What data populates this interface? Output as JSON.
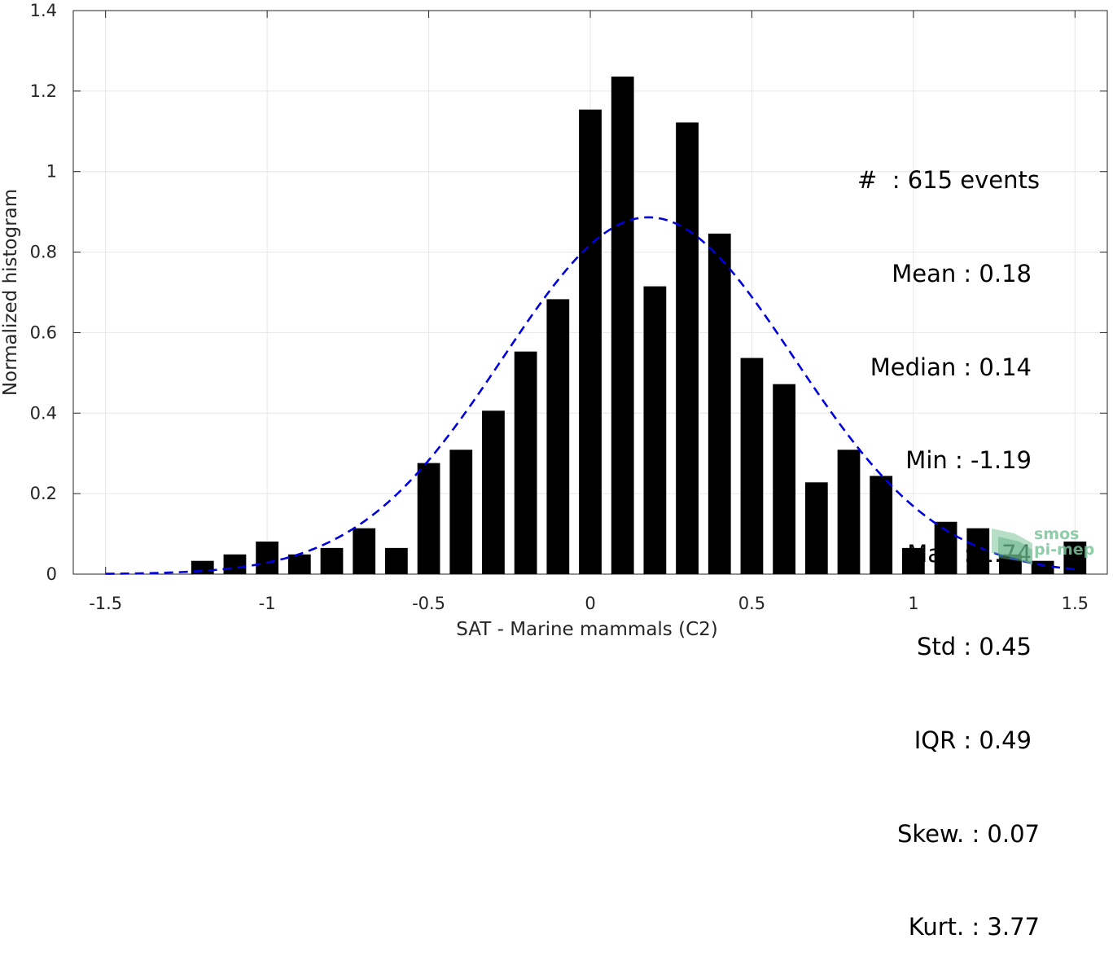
{
  "chart_data": {
    "type": "bar",
    "xlabel": "SAT - Marine mammals (C2)",
    "ylabel": "Normalized histogram",
    "xlim": [
      -1.6,
      1.6
    ],
    "ylim": [
      0,
      1.4
    ],
    "xticks": [
      -1.5,
      -1,
      -0.5,
      0,
      0.5,
      1,
      1.5
    ],
    "xtick_labels": [
      "-1.5",
      "-1",
      "-0.5",
      "0",
      "0.5",
      "1",
      "1.5"
    ],
    "yticks": [
      0,
      0.2,
      0.4,
      0.6,
      0.8,
      1,
      1.2,
      1.4
    ],
    "ytick_labels": [
      "0",
      "0.2",
      "0.4",
      "0.6",
      "0.8",
      "1",
      "1.2",
      "1.4"
    ],
    "grid": true,
    "bar_width": 0.07,
    "bar_color": "#000000",
    "bars": {
      "x": [
        -1.2,
        -1.1,
        -1.0,
        -0.9,
        -0.8,
        -0.7,
        -0.6,
        -0.5,
        -0.4,
        -0.3,
        -0.2,
        -0.1,
        0.0,
        0.1,
        0.2,
        0.3,
        0.4,
        0.5,
        0.6,
        0.7,
        0.8,
        0.9,
        1.0,
        1.1,
        1.2,
        1.3,
        1.4,
        1.5
      ],
      "values": [
        0.033,
        0.049,
        0.081,
        0.049,
        0.065,
        0.114,
        0.065,
        0.276,
        0.309,
        0.406,
        0.553,
        0.683,
        1.154,
        1.236,
        0.715,
        1.122,
        0.846,
        0.537,
        0.472,
        0.228,
        0.309,
        0.244,
        0.065,
        0.13,
        0.114,
        0.049,
        0.033,
        0.081
      ]
    },
    "fit_curve": {
      "style": "dashed",
      "color": "#0000dd",
      "mean": 0.18,
      "std": 0.45,
      "x_range": [
        -1.5,
        1.5
      ]
    },
    "annotations": [
      "#  : 615 events",
      "Mean : 0.18",
      "Median : 0.14",
      "Min : -1.19",
      "Max : 1.74",
      "Std : 0.45",
      "IQR : 0.49",
      "Skew. : 0.07",
      "Kurt. : 3.77"
    ]
  },
  "watermark": {
    "lines": [
      "smos",
      "pi-mep"
    ],
    "color": "#7cc49a"
  }
}
